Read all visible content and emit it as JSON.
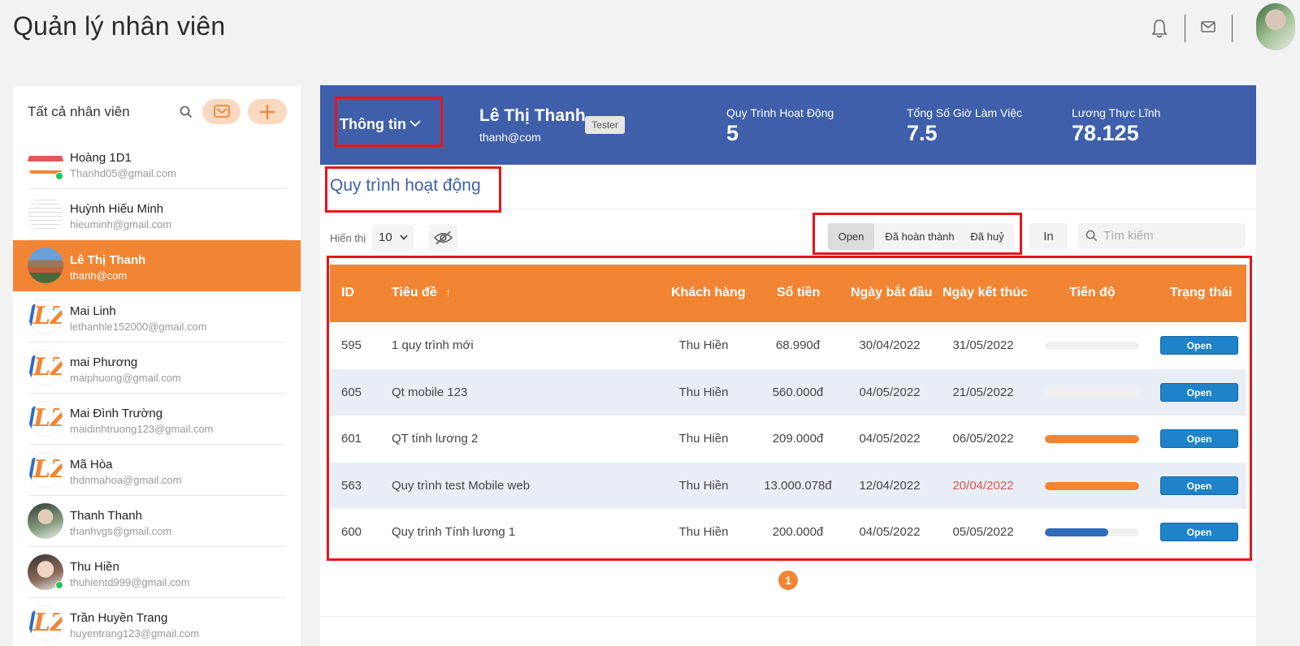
{
  "app": {
    "title": "Quản lý nhân viên"
  },
  "sidebar": {
    "title": "Tất cả nhân viên",
    "items": [
      {
        "name": "Hoàng 1D1",
        "email": "Thanhd05@gmail.com",
        "avatar": "red-doc",
        "online": true,
        "active": false
      },
      {
        "name": "Huỳnh Hiếu Minh",
        "email": "hieuminh@gmail.com",
        "avatar": "doc",
        "online": false,
        "active": false
      },
      {
        "name": "Lê Thị Thanh",
        "email": "thanh@com",
        "avatar": "city",
        "online": false,
        "active": true
      },
      {
        "name": "Mai Linh",
        "email": "lethanhle152000@gmail.com",
        "avatar": "lz-logo",
        "online": false,
        "active": false
      },
      {
        "name": "mai Phương",
        "email": "maiphuong@gmail.com",
        "avatar": "lz-logo",
        "online": false,
        "active": false
      },
      {
        "name": "Mai Đình Trường",
        "email": "maidinhtruong123@gmail.com",
        "avatar": "lz-logo",
        "online": false,
        "active": false
      },
      {
        "name": "Mã Hòa",
        "email": "thdnmahoa@gmail.com",
        "avatar": "lz-logo",
        "online": false,
        "active": false
      },
      {
        "name": "Thanh Thanh",
        "email": "thanhvgs@gmail.com",
        "avatar": "photo",
        "online": false,
        "active": false
      },
      {
        "name": "Thu Hiền",
        "email": "thuhientd999@gmail.com",
        "avatar": "photo2",
        "online": true,
        "active": false
      },
      {
        "name": "Trần Huyền Trang",
        "email": "huyentrang123@gmail.com",
        "avatar": "lz-logo",
        "online": false,
        "active": false
      }
    ]
  },
  "banner": {
    "info_label": "Thông tin",
    "employee_name": "Lê Thị Thanh",
    "employee_email": "thanh@com",
    "role": "Tester",
    "stats": [
      {
        "label": "Quy Trình Hoạt Động",
        "value": "5"
      },
      {
        "label": "Tổng Số Giờ Làm Việc",
        "value": "7.5"
      },
      {
        "label": "Lương Thực Lĩnh",
        "value": "78.125"
      }
    ]
  },
  "section": {
    "title": "Quy trình hoạt động"
  },
  "controls": {
    "show_label": "Hiển thị",
    "page_size": "10",
    "filters": [
      "Open",
      "Đã hoàn thành",
      "Đã huỷ"
    ],
    "active_filter": "Open",
    "print_label": "In",
    "search_placeholder": "Tìm kiếm"
  },
  "table": {
    "columns": [
      "ID",
      "Tiêu đề",
      "Khách hàng",
      "Số tiền",
      "Ngày bắt đầu",
      "Ngày kết thúc",
      "Tiến độ",
      "Trạng thái"
    ],
    "sort_indicator": "↑",
    "rows": [
      {
        "id": "595",
        "title": "1 quy trình mới",
        "customer": "Thu Hiền",
        "amount": "68.990đ",
        "start": "30/04/2022",
        "end": "31/05/2022",
        "progress": 0,
        "progress_color": "",
        "late": false,
        "status": "Open"
      },
      {
        "id": "605",
        "title": "Qt mobile 123",
        "customer": "Thu Hiền",
        "amount": "560.000đ",
        "start": "04/05/2022",
        "end": "21/05/2022",
        "progress": 0,
        "progress_color": "",
        "late": false,
        "status": "Open"
      },
      {
        "id": "601",
        "title": "QT tính lương 2",
        "customer": "Thu Hiền",
        "amount": "209.000đ",
        "start": "04/05/2022",
        "end": "06/05/2022",
        "progress": 1.0,
        "progress_color": "#f28534",
        "late": false,
        "status": "Open"
      },
      {
        "id": "563",
        "title": "Quy trình test Mobile web",
        "customer": "Thu Hiền",
        "amount": "13.000.078đ",
        "start": "12/04/2022",
        "end": "20/04/2022",
        "progress": 1.0,
        "progress_color": "#f28534",
        "late": true,
        "status": "Open"
      },
      {
        "id": "600",
        "title": "Quy trình Tính lương 1",
        "customer": "Thu Hiền",
        "amount": "200.000đ",
        "start": "04/05/2022",
        "end": "05/05/2022",
        "progress": 0.67,
        "progress_color": "#2e6bb8",
        "late": false,
        "status": "Open"
      }
    ]
  },
  "pagination": {
    "current": "1"
  },
  "colors": {
    "accent": "#f28534",
    "banner": "#3f5faa",
    "status": "#1e83c9",
    "late": "#d9534f"
  }
}
